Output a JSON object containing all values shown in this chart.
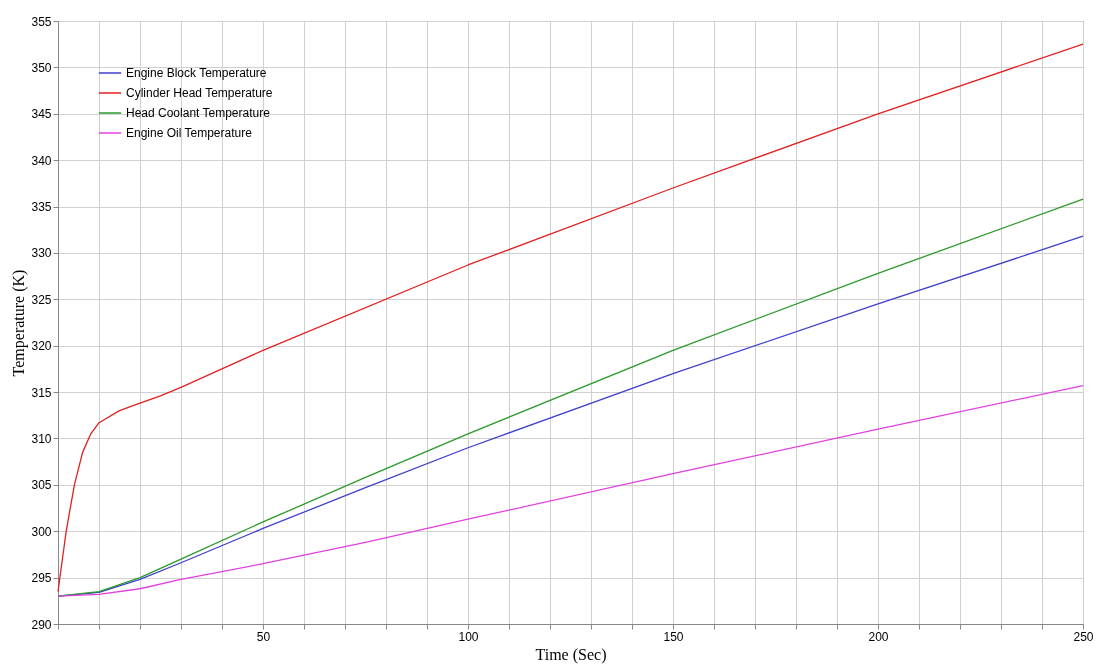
{
  "chart_data": {
    "type": "line",
    "xlabel": "Time (Sec)",
    "ylabel": "Temperature (K)",
    "xlim": [
      0,
      250
    ],
    "ylim": [
      290,
      355
    ],
    "xticks": [
      {
        "value": 0,
        "label": null
      },
      {
        "value": 10,
        "label": null
      },
      {
        "value": 20,
        "label": null
      },
      {
        "value": 30,
        "label": null
      },
      {
        "value": 40,
        "label": null
      },
      50,
      {
        "value": 60,
        "label": null
      },
      {
        "value": 70,
        "label": null
      },
      {
        "value": 80,
        "label": null
      },
      {
        "value": 90,
        "label": null
      },
      100,
      {
        "value": 110,
        "label": null
      },
      {
        "value": 120,
        "label": null
      },
      {
        "value": 130,
        "label": null
      },
      {
        "value": 140,
        "label": null
      },
      150,
      {
        "value": 160,
        "label": null
      },
      {
        "value": 170,
        "label": null
      },
      {
        "value": 180,
        "label": null
      },
      {
        "value": 190,
        "label": null
      },
      200,
      {
        "value": 210,
        "label": null
      },
      {
        "value": 220,
        "label": null
      },
      {
        "value": 230,
        "label": null
      },
      {
        "value": 240,
        "label": null
      },
      250
    ],
    "yticks": [
      290,
      295,
      300,
      305,
      310,
      315,
      320,
      325,
      330,
      335,
      340,
      345,
      350,
      355
    ],
    "grid": true,
    "legend": "top left",
    "marker": "none",
    "line_style": "solid",
    "series": [
      {
        "name": "Engine Block Temperature",
        "color": "#3f3fcf",
        "x": [
          0,
          10,
          20,
          30,
          50,
          75,
          100,
          150,
          200,
          250
        ],
        "values": [
          293,
          293.4,
          294.8,
          296.6,
          300.3,
          304.7,
          309,
          317,
          324.5,
          331.8
        ]
      },
      {
        "name": "Cylinder Head Temperature",
        "color": "#e02020",
        "x": [
          0,
          2,
          4,
          6,
          8,
          10,
          15,
          20,
          25,
          30,
          50,
          100,
          150,
          200,
          250
        ],
        "values": [
          293.5,
          300,
          305,
          308.5,
          310.5,
          311.7,
          313,
          313.8,
          314.6,
          315.5,
          319.5,
          328.7,
          337,
          345,
          352.5
        ]
      },
      {
        "name": "Head Coolant Temperature",
        "color": "#2a9a2a",
        "x": [
          0,
          10,
          20,
          30,
          50,
          75,
          100,
          150,
          200,
          250
        ],
        "values": [
          293,
          293.5,
          295,
          297,
          301,
          305.8,
          310.5,
          319.5,
          327.8,
          335.8
        ]
      },
      {
        "name": "Engine Oil Temperature",
        "color": "#e040e0",
        "x": [
          0,
          10,
          20,
          30,
          50,
          75,
          100,
          150,
          200,
          250
        ],
        "values": [
          293,
          293.2,
          293.8,
          294.8,
          296.5,
          298.8,
          301.3,
          306.2,
          311,
          315.7
        ]
      }
    ]
  }
}
